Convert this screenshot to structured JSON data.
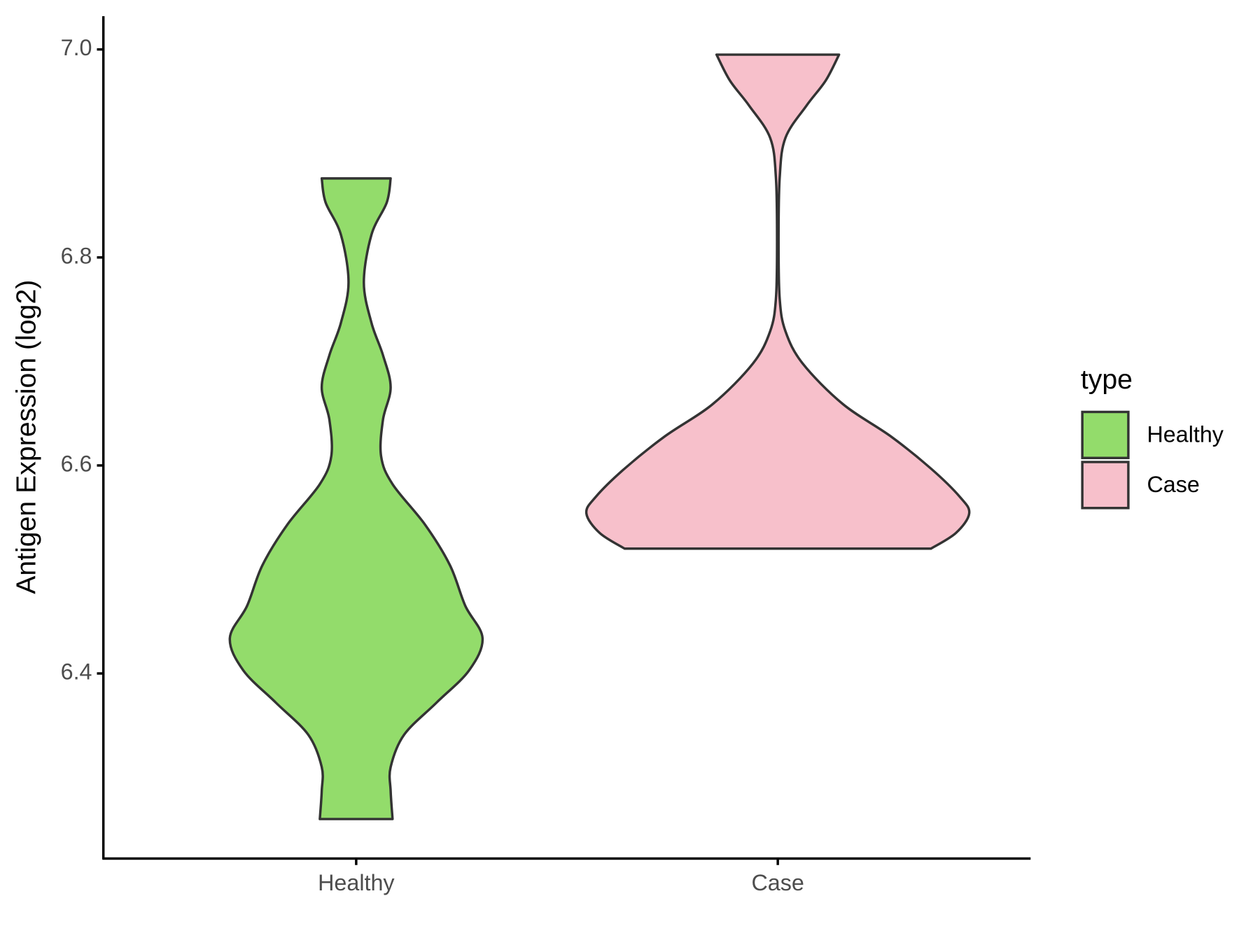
{
  "chart_data": {
    "type": "violin",
    "y_label": "Antigen Expression (log2)",
    "categories": [
      "Healthy",
      "Case"
    ],
    "legend_title": "type",
    "legend_position": "right",
    "ylim": [
      6.222,
      7.032
    ],
    "yticks": [
      6.4,
      6.6,
      6.8,
      {
        "value": 7,
        "label": "7.0"
      }
    ],
    "series": [
      {
        "name": "Healthy",
        "color": "#93dc6b",
        "y": [
          6.876,
          6.853,
          6.822,
          6.776,
          6.737,
          6.706,
          6.675,
          6.644,
          6.609,
          6.582,
          6.543,
          6.504,
          6.465,
          6.434,
          6.403,
          6.372,
          6.341,
          6.31,
          6.287,
          6.26
        ],
        "density": [
          0.18,
          0.16,
          0.08,
          0.04,
          0.08,
          0.14,
          0.18,
          0.14,
          0.13,
          0.19,
          0.36,
          0.49,
          0.57,
          0.66,
          0.59,
          0.42,
          0.25,
          0.18,
          0.18,
          0.19
        ]
      },
      {
        "name": "Case",
        "color": "#f7c0cb",
        "y": [
          6.995,
          6.97,
          6.946,
          6.915,
          6.877,
          6.815,
          6.76,
          6.729,
          6.698,
          6.659,
          6.628,
          6.597,
          6.57,
          6.554,
          6.535,
          6.52
        ],
        "density": [
          0.32,
          0.25,
          0.15,
          0.04,
          0.01,
          0.004,
          0.01,
          0.04,
          0.13,
          0.34,
          0.59,
          0.8,
          0.95,
          1.0,
          0.93,
          0.8
        ]
      }
    ]
  }
}
